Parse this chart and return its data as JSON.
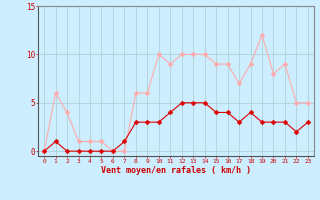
{
  "x": [
    0,
    1,
    2,
    3,
    4,
    5,
    6,
    7,
    8,
    9,
    10,
    11,
    12,
    13,
    14,
    15,
    16,
    17,
    18,
    19,
    20,
    21,
    22,
    23
  ],
  "wind_avg": [
    0,
    1,
    0,
    0,
    0,
    0,
    0,
    1,
    3,
    3,
    3,
    4,
    5,
    5,
    5,
    4,
    4,
    3,
    4,
    3,
    3,
    3,
    2,
    3
  ],
  "wind_gust": [
    0,
    6,
    4,
    1,
    1,
    1,
    0,
    0,
    6,
    6,
    10,
    9,
    10,
    10,
    10,
    9,
    9,
    7,
    9,
    12,
    8,
    9,
    5,
    5
  ],
  "wind_avg_color": "#dd0000",
  "wind_gust_color": "#ffaaaa",
  "bg_color": "#cceeff",
  "grid_color": "#aacccc",
  "xlabel": "Vent moyen/en rafales ( km/h )",
  "xlabel_color": "#cc0000",
  "tick_color": "#cc0000",
  "ylim": [
    -0.5,
    15
  ],
  "yticks": [
    0,
    5,
    10,
    15
  ],
  "ytick_labels": [
    "0",
    "5",
    "10",
    "15"
  ],
  "xlim": [
    -0.5,
    23.5
  ],
  "markersize": 2.5,
  "linewidth": 0.8
}
